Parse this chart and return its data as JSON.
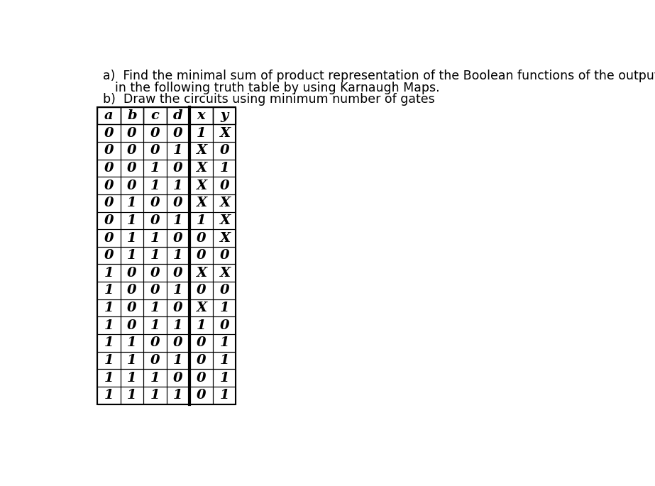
{
  "title_a": "a)  Find the minimal sum of product representation of the Boolean functions of the outputs x and y given",
  "title_a2": "in the following truth table by using Karnaugh Maps.",
  "title_b": "b)  Draw the circuits using minimum number of gates",
  "headers": [
    "a",
    "b",
    "c",
    "d",
    "x",
    "y"
  ],
  "rows": [
    [
      "0",
      "0",
      "0",
      "0",
      "1",
      "X"
    ],
    [
      "0",
      "0",
      "0",
      "1",
      "X",
      "0"
    ],
    [
      "0",
      "0",
      "1",
      "0",
      "X",
      "1"
    ],
    [
      "0",
      "0",
      "1",
      "1",
      "X",
      "0"
    ],
    [
      "0",
      "1",
      "0",
      "0",
      "X",
      "X"
    ],
    [
      "0",
      "1",
      "0",
      "1",
      "1",
      "X"
    ],
    [
      "0",
      "1",
      "1",
      "0",
      "0",
      "X"
    ],
    [
      "0",
      "1",
      "1",
      "1",
      "0",
      "0"
    ],
    [
      "1",
      "0",
      "0",
      "0",
      "X",
      "X"
    ],
    [
      "1",
      "0",
      "0",
      "1",
      "0",
      "0"
    ],
    [
      "1",
      "0",
      "1",
      "0",
      "X",
      "1"
    ],
    [
      "1",
      "0",
      "1",
      "1",
      "1",
      "0"
    ],
    [
      "1",
      "1",
      "0",
      "0",
      "0",
      "1"
    ],
    [
      "1",
      "1",
      "0",
      "1",
      "0",
      "1"
    ],
    [
      "1",
      "1",
      "1",
      "0",
      "0",
      "1"
    ],
    [
      "1",
      "1",
      "1",
      "1",
      "0",
      "1"
    ]
  ],
  "col_separator_after": 3,
  "bg_color": "#ffffff",
  "text_color": "#000000",
  "font_size": 14,
  "title_font_size": 12.5
}
